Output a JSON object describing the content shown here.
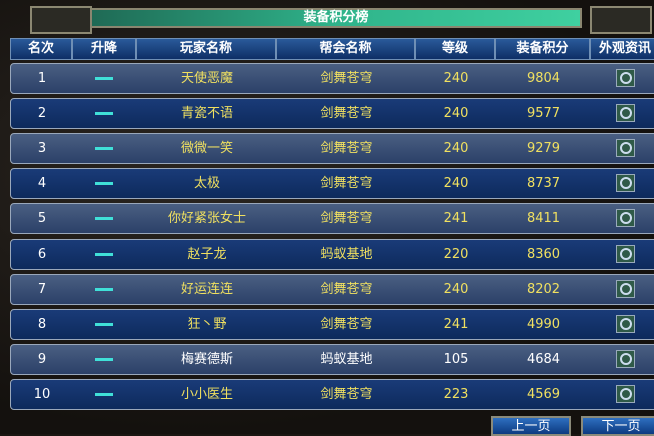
{
  "title": "装备积分榜",
  "columns": [
    "名次",
    "升降",
    "玩家名称",
    "帮会名称",
    "等级",
    "装备积分",
    "外观资讯"
  ],
  "rows": [
    {
      "rank": "1",
      "player": "天使恶魔",
      "guild": "剑舞苍穹",
      "level": "240",
      "score": "9804"
    },
    {
      "rank": "2",
      "player": "青瓷不语",
      "guild": "剑舞苍穹",
      "level": "240",
      "score": "9577"
    },
    {
      "rank": "3",
      "player": "微微一笑",
      "guild": "剑舞苍穹",
      "level": "240",
      "score": "9279"
    },
    {
      "rank": "4",
      "player": "太极",
      "guild": "剑舞苍穹",
      "level": "240",
      "score": "8737"
    },
    {
      "rank": "5",
      "player": "你好紧张女士",
      "guild": "剑舞苍穹",
      "level": "241",
      "score": "8411"
    },
    {
      "rank": "6",
      "player": "赵子龙",
      "guild": "蚂蚁基地",
      "level": "220",
      "score": "8360"
    },
    {
      "rank": "7",
      "player": "好运连连",
      "guild": "剑舞苍穹",
      "level": "240",
      "score": "8202"
    },
    {
      "rank": "8",
      "player": "狂丶野",
      "guild": "剑舞苍穹",
      "level": "241",
      "score": "4990"
    },
    {
      "rank": "9",
      "player": "梅赛德斯",
      "guild": "蚂蚁基地",
      "level": "105",
      "score": "4684"
    },
    {
      "rank": "10",
      "player": "小小医生",
      "guild": "剑舞苍穹",
      "level": "223",
      "score": "4569"
    }
  ],
  "prev_label": "上一页",
  "next_label": "下一页",
  "change_icon": "dash-icon",
  "view_icon": "magnifier-icon"
}
